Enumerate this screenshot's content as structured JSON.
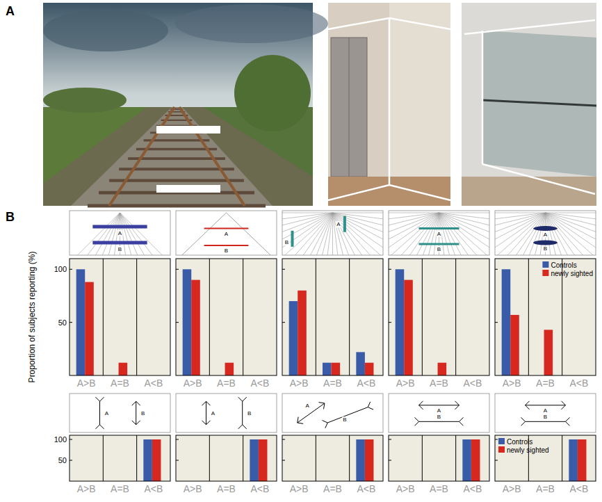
{
  "panel_labels": [
    "A",
    "B"
  ],
  "y_axis_title": "Proportion of subjects reporting (%)",
  "chart_data": [
    {
      "type": "bar",
      "categories": [
        "A>B",
        "A=B",
        "A<B"
      ],
      "series": [
        {
          "name": "Controls",
          "color": "#3a5ca8",
          "values": [
            100,
            0,
            0
          ]
        },
        {
          "name": "newly sighted",
          "color": "#d6281e",
          "values": [
            88,
            12,
            0
          ]
        }
      ],
      "ylim": [
        0,
        110
      ],
      "yticks": [
        50,
        100
      ],
      "annotations": [
        "A",
        "B"
      ]
    },
    {
      "type": "bar",
      "categories": [
        "A>B",
        "A=B",
        "A<B"
      ],
      "series": [
        {
          "name": "Controls",
          "color": "#3a5ca8",
          "values": [
            100,
            0,
            0
          ]
        },
        {
          "name": "newly sighted",
          "color": "#d6281e",
          "values": [
            90,
            12,
            0
          ]
        }
      ],
      "ylim": [
        0,
        110
      ],
      "yticks": [
        50,
        100
      ],
      "annotations": [
        "A",
        "B"
      ],
      "tick_labels": "x"
    },
    {
      "type": "bar",
      "categories": [
        "A>B",
        "A=B",
        "A<B"
      ],
      "series": [
        {
          "name": "Controls",
          "color": "#3a5ca8",
          "values": [
            70,
            12,
            22
          ]
        },
        {
          "name": "newly sighted",
          "color": "#d6281e",
          "values": [
            80,
            12,
            12
          ]
        }
      ],
      "ylim": [
        0,
        110
      ],
      "yticks": [
        50,
        100
      ],
      "annotations": [
        "A",
        "B"
      ],
      "tick_labels": "x"
    },
    {
      "type": "bar",
      "categories": [
        "A>B",
        "A=B",
        "A<B"
      ],
      "series": [
        {
          "name": "Controls",
          "color": "#3a5ca8",
          "values": [
            100,
            0,
            0
          ]
        },
        {
          "name": "newly sighted",
          "color": "#d6281e",
          "values": [
            90,
            12,
            0
          ]
        }
      ],
      "ylim": [
        0,
        110
      ],
      "yticks": [
        50,
        100
      ],
      "annotations": [
        "A",
        "B"
      ],
      "tick_labels": "x"
    },
    {
      "type": "bar",
      "categories": [
        "A>B",
        "A=B",
        "A<B"
      ],
      "series": [
        {
          "name": "Controls",
          "color": "#3a5ca8",
          "values": [
            100,
            0,
            0
          ]
        },
        {
          "name": "newly sighted",
          "color": "#d6281e",
          "values": [
            57,
            43,
            0
          ]
        }
      ],
      "ylim": [
        0,
        110
      ],
      "yticks": [
        50,
        100
      ],
      "annotations": [
        "A",
        "B"
      ],
      "tick_labels": "x",
      "legend": "upper right"
    },
    {
      "type": "bar",
      "categories": [
        "A>B",
        "A=B",
        "A<B"
      ],
      "series": [
        {
          "name": "Controls",
          "color": "#3a5ca8",
          "values": [
            0,
            0,
            100
          ]
        },
        {
          "name": "newly sighted",
          "color": "#d6281e",
          "values": [
            0,
            0,
            100
          ]
        }
      ],
      "ylim": [
        0,
        110
      ],
      "yticks": [
        50,
        100
      ],
      "annotations": [
        "A",
        "B"
      ]
    },
    {
      "type": "bar",
      "categories": [
        "A>B",
        "A=B",
        "A<B"
      ],
      "series": [
        {
          "name": "Controls",
          "color": "#3a5ca8",
          "values": [
            0,
            0,
            100
          ]
        },
        {
          "name": "newly sighted",
          "color": "#d6281e",
          "values": [
            0,
            0,
            100
          ]
        }
      ],
      "ylim": [
        0,
        110
      ],
      "yticks": [
        50,
        100
      ],
      "annotations": [
        "A",
        "B"
      ],
      "tick_labels": "x"
    },
    {
      "type": "bar",
      "categories": [
        "A>B",
        "A=B",
        "A<B"
      ],
      "series": [
        {
          "name": "Controls",
          "color": "#3a5ca8",
          "values": [
            0,
            0,
            100
          ]
        },
        {
          "name": "newly sighted",
          "color": "#d6281e",
          "values": [
            0,
            0,
            100
          ]
        }
      ],
      "ylim": [
        0,
        110
      ],
      "yticks": [
        50,
        100
      ],
      "annotations": [
        "A",
        "B"
      ],
      "tick_labels": "x"
    },
    {
      "type": "bar",
      "categories": [
        "A>B",
        "A=B",
        "A<B"
      ],
      "series": [
        {
          "name": "Controls",
          "color": "#3a5ca8",
          "values": [
            0,
            0,
            100
          ]
        },
        {
          "name": "newly sighted",
          "color": "#d6281e",
          "values": [
            0,
            0,
            100
          ]
        }
      ],
      "ylim": [
        0,
        110
      ],
      "yticks": [
        50,
        100
      ],
      "annotations": [
        "A",
        "B"
      ],
      "tick_labels": "x"
    },
    {
      "type": "bar",
      "categories": [
        "A>B",
        "A=B",
        "A<B"
      ],
      "series": [
        {
          "name": "Controls",
          "color": "#3a5ca8",
          "values": [
            0,
            0,
            100
          ]
        },
        {
          "name": "newly sighted",
          "color": "#d6281e",
          "values": [
            0,
            0,
            100
          ]
        }
      ],
      "ylim": [
        0,
        110
      ],
      "yticks": [
        50,
        100
      ],
      "annotations": [
        "A",
        "B"
      ],
      "tick_labels": "x",
      "legend": "upper left"
    }
  ]
}
